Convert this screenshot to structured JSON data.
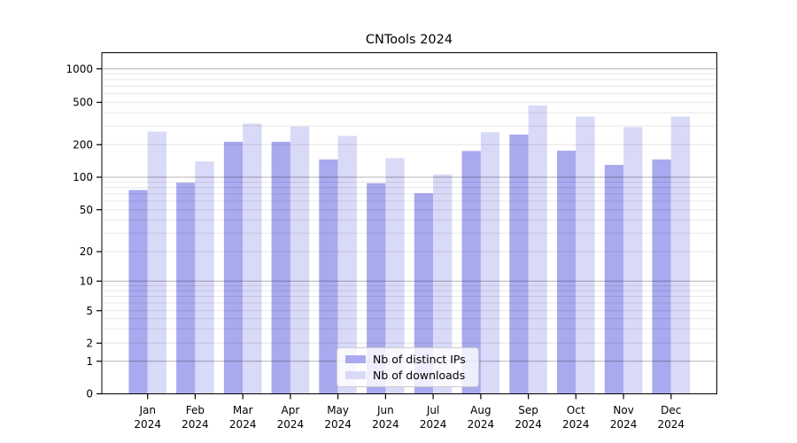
{
  "chart_data": {
    "type": "bar",
    "title": "CNTools 2024",
    "categories": [
      "Jan 2024",
      "Feb 2024",
      "Mar 2024",
      "Apr 2024",
      "May 2024",
      "Jun 2024",
      "Jul 2024",
      "Aug 2024",
      "Sep 2024",
      "Oct 2024",
      "Nov 2024",
      "Dec 2024"
    ],
    "series": [
      {
        "name": "Nb of distinct IPs",
        "color": "#a9a9ef",
        "values": [
          76,
          89,
          213,
          213,
          146,
          88,
          71,
          175,
          249,
          176,
          130,
          146
        ]
      },
      {
        "name": "Nb of downloads",
        "color": "#d9d9f8",
        "values": [
          265,
          140,
          316,
          296,
          242,
          150,
          106,
          262,
          468,
          368,
          293,
          368
        ]
      }
    ],
    "xlabel": "",
    "ylabel": "",
    "yscale": "symlog",
    "yticks": [
      0,
      1,
      2,
      5,
      10,
      20,
      50,
      100,
      200,
      500,
      1000
    ],
    "ylim": [
      0,
      1400
    ],
    "grid": true,
    "legend_position": "lower center",
    "axis_color": "#000000",
    "grid_major_color": "#b3b3b3",
    "grid_minor_color": "#e6e6e6"
  }
}
